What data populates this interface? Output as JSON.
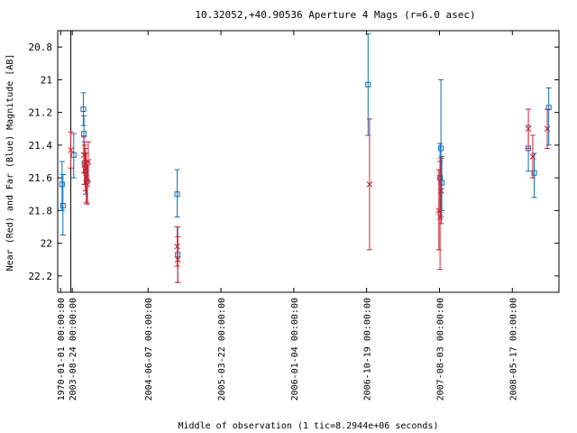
{
  "chart_data": {
    "type": "scatter",
    "title": "10.32052,+40.90536   Aperture 4 Mags (r=6.0 asec)",
    "xlabel": "Middle of observation (1 tic=8.2944e+06 seconds)",
    "ylabel": "Near (Red) and Far (Blue) Magnitude [AB]",
    "y_inverted": true,
    "ylim": [
      22.3,
      20.7
    ],
    "y_ticks": [
      {
        "value": 20.8,
        "label": "20.8"
      },
      {
        "value": 21.0,
        "label": "21"
      },
      {
        "value": 21.2,
        "label": "21.2"
      },
      {
        "value": 21.4,
        "label": "21.4"
      },
      {
        "value": 21.6,
        "label": "21.6"
      },
      {
        "value": 21.8,
        "label": "21.8"
      },
      {
        "value": 22.0,
        "label": "22"
      },
      {
        "value": 22.2,
        "label": "22.2"
      }
    ],
    "x_ticks": [
      {
        "value": 0.0,
        "label": "1970-01-01 00:00:00"
      },
      {
        "value": 0.4,
        "label": "2003-08-24 00:00:00"
      },
      {
        "value": 3.0,
        "label": "2004-06-07 00:00:00"
      },
      {
        "value": 5.5,
        "label": "2005-03-22 00:00:00"
      },
      {
        "value": 8.0,
        "label": "2006-01-04 00:00:00"
      },
      {
        "value": 10.5,
        "label": "2006-10-19 00:00:00"
      },
      {
        "value": 13.0,
        "label": "2007-08-03 00:00:00"
      },
      {
        "value": 15.5,
        "label": "2008-05-17 00:00:00"
      }
    ],
    "xlim": [
      -0.1,
      17.1
    ],
    "series": [
      {
        "color": "#0a6fc2",
        "marker": "square",
        "points": [
          {
            "x": 0.05,
            "y": 21.64,
            "lo": 21.5,
            "hi": 21.8
          },
          {
            "x": 0.08,
            "y": 21.77,
            "lo": 21.58,
            "hi": 21.95
          },
          {
            "x": 0.45,
            "y": 21.46,
            "lo": 21.33,
            "hi": 21.6
          },
          {
            "x": 0.78,
            "y": 21.18,
            "lo": 21.08,
            "hi": 21.28
          },
          {
            "x": 0.8,
            "y": 21.33,
            "lo": 21.22,
            "hi": 21.45
          },
          {
            "x": 0.82,
            "y": 21.51,
            "lo": 21.38,
            "hi": 21.64
          },
          {
            "x": 0.86,
            "y": 21.56,
            "lo": 21.45,
            "hi": 21.7
          },
          {
            "x": 0.9,
            "y": 21.62,
            "lo": 21.5,
            "hi": 21.76
          },
          {
            "x": 4.0,
            "y": 21.7,
            "lo": 21.55,
            "hi": 21.84
          },
          {
            "x": 4.02,
            "y": 22.07,
            "lo": 21.9,
            "hi": 22.24
          },
          {
            "x": 10.55,
            "y": 21.03,
            "lo": 20.72,
            "hi": 21.34
          },
          {
            "x": 13.02,
            "y": 21.6,
            "lo": 21.39,
            "hi": 21.81
          },
          {
            "x": 13.05,
            "y": 21.42,
            "lo": 21.0,
            "hi": 21.84
          },
          {
            "x": 13.08,
            "y": 21.63,
            "lo": 21.47,
            "hi": 21.8
          },
          {
            "x": 16.05,
            "y": 21.42,
            "lo": 21.28,
            "hi": 21.56
          },
          {
            "x": 16.25,
            "y": 21.57,
            "lo": 21.45,
            "hi": 21.72
          },
          {
            "x": 16.75,
            "y": 21.17,
            "lo": 21.05,
            "hi": 21.4
          }
        ]
      },
      {
        "color": "#d4202c",
        "marker": "x",
        "points": [
          {
            "x": 0.35,
            "y": 21.43,
            "lo": 21.32,
            "hi": 21.54
          },
          {
            "x": 0.8,
            "y": 21.46,
            "lo": 21.35,
            "hi": 21.57
          },
          {
            "x": 0.82,
            "y": 21.52,
            "lo": 21.4,
            "hi": 21.64
          },
          {
            "x": 0.85,
            "y": 21.55,
            "lo": 21.42,
            "hi": 21.68
          },
          {
            "x": 0.88,
            "y": 21.6,
            "lo": 21.45,
            "hi": 21.75
          },
          {
            "x": 0.92,
            "y": 21.64,
            "lo": 21.52,
            "hi": 21.76
          },
          {
            "x": 0.95,
            "y": 21.5,
            "lo": 21.38,
            "hi": 21.62
          },
          {
            "x": 4.0,
            "y": 22.02,
            "lo": 21.9,
            "hi": 22.14
          },
          {
            "x": 4.02,
            "y": 22.1,
            "lo": 21.96,
            "hi": 22.24
          },
          {
            "x": 10.6,
            "y": 21.64,
            "lo": 21.24,
            "hi": 22.04
          },
          {
            "x": 12.98,
            "y": 21.8,
            "lo": 21.55,
            "hi": 22.04
          },
          {
            "x": 13.02,
            "y": 21.84,
            "lo": 21.5,
            "hi": 22.16
          },
          {
            "x": 13.06,
            "y": 21.68,
            "lo": 21.48,
            "hi": 21.88
          },
          {
            "x": 16.05,
            "y": 21.3,
            "lo": 21.18,
            "hi": 21.42
          },
          {
            "x": 16.2,
            "y": 21.47,
            "lo": 21.34,
            "hi": 21.6
          },
          {
            "x": 16.7,
            "y": 21.3,
            "lo": 21.18,
            "hi": 21.42
          }
        ]
      }
    ],
    "vertical_marker": {
      "x": 0.35
    }
  }
}
